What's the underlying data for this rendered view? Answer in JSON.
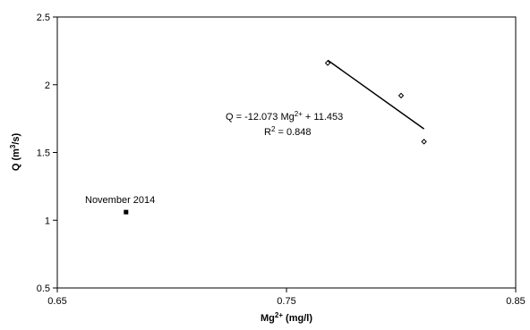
{
  "chart_data": {
    "type": "scatter",
    "xlim": [
      0.65,
      0.85
    ],
    "ylim": [
      0.5,
      2.5
    ],
    "x_ticks": [
      "0.65",
      "0.75",
      "0.85"
    ],
    "y_ticks": [
      "0.5",
      "1",
      "1.5",
      "2",
      "2.5"
    ],
    "x_tick_values": [
      0.65,
      0.75,
      0.85
    ],
    "y_tick_values": [
      0.5,
      1,
      1.5,
      2,
      2.5
    ],
    "grid": false,
    "xlabel": {
      "base": "Mg",
      "sup": "2+",
      "tail": " (mg/l)"
    },
    "ylabel": {
      "base": "Q (m",
      "sup": "3",
      "tail": "/s)"
    },
    "series": [
      {
        "marker": "diamond-open",
        "points": [
          {
            "x": 0.768,
            "y": 2.16
          },
          {
            "x": 0.8,
            "y": 1.92
          },
          {
            "x": 0.81,
            "y": 1.58
          }
        ]
      },
      {
        "marker": "square-filled",
        "points": [
          {
            "x": 0.68,
            "y": 1.06
          }
        ]
      }
    ],
    "trendline": {
      "slope": -12.073,
      "intercept": 11.453,
      "x_range": [
        0.768,
        0.81
      ]
    },
    "annotations": {
      "outlier_label": "November 2014",
      "equation": {
        "prefix": "Q = -12.073 Mg",
        "sup": "2+",
        "suffix": " + 11.453"
      },
      "r2": {
        "prefix": "R",
        "sup": "2",
        "suffix": " = 0.848"
      }
    }
  }
}
